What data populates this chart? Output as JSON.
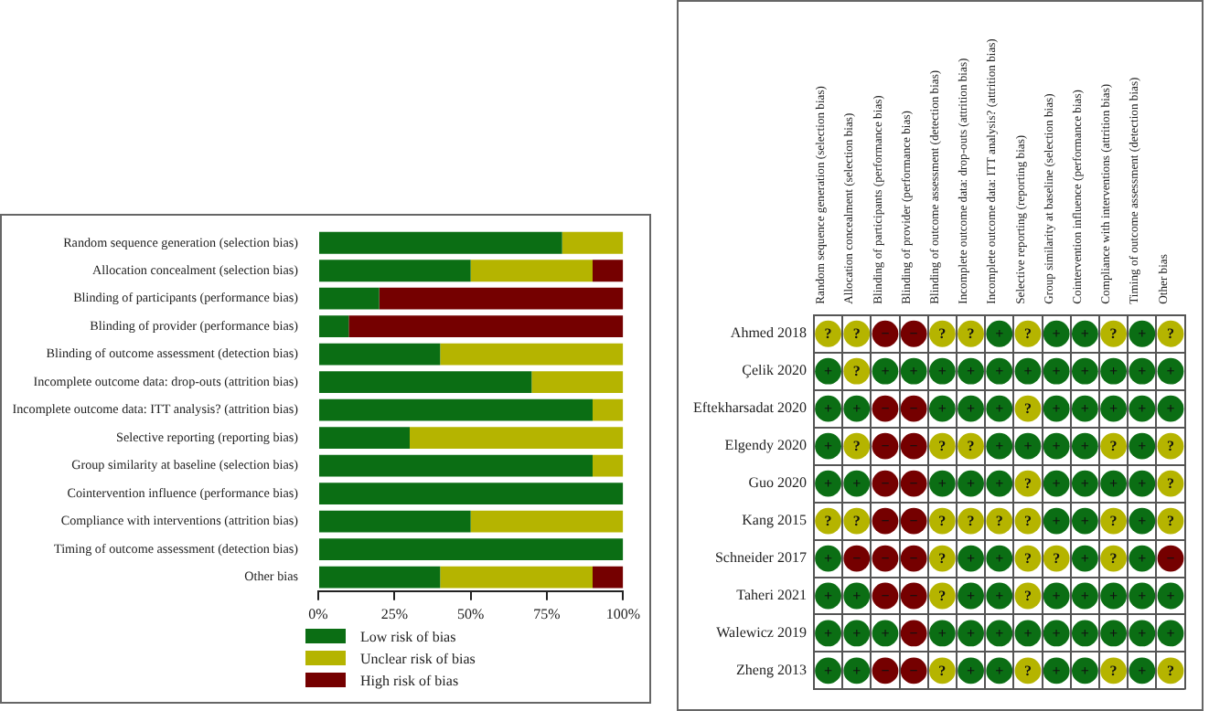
{
  "chart_data": [
    {
      "type": "bar",
      "orientation": "horizontal",
      "stacked": true,
      "legend": "bottom",
      "categories": [
        "Random sequence generation (selection bias)",
        "Allocation concealment (selection bias)",
        "Blinding of participants (performance bias)",
        "Blinding of provider (performance bias)",
        "Blinding of outcome assessment (detection bias)",
        "Incomplete outcome data: drop-outs (attrition bias)",
        "Incomplete outcome data: ITT analysis? (attrition bias)",
        "Selective reporting (reporting bias)",
        "Group similarity at baseline (selection bias)",
        "Cointervention influence (performance bias)",
        "Compliance with interventions (attrition bias)",
        "Timing of outcome assessment (detection bias)",
        "Other bias"
      ],
      "series": [
        {
          "name": "Low risk of bias",
          "color": "#0b6e14",
          "values": [
            80,
            50,
            20,
            10,
            40,
            70,
            90,
            30,
            90,
            100,
            50,
            100,
            40
          ]
        },
        {
          "name": "Unclear risk of bias",
          "color": "#b5b400",
          "values": [
            20,
            40,
            0,
            0,
            60,
            30,
            10,
            70,
            10,
            0,
            50,
            0,
            50
          ]
        },
        {
          "name": "High risk of bias",
          "color": "#750000",
          "values": [
            0,
            10,
            80,
            90,
            0,
            0,
            0,
            0,
            0,
            0,
            0,
            0,
            10
          ]
        }
      ],
      "xlim": [
        0,
        100
      ],
      "xticks": [
        {
          "value": 0,
          "label": "0%"
        },
        {
          "value": 25,
          "label": "25%"
        },
        {
          "value": 50,
          "label": "50%"
        },
        {
          "value": 75,
          "label": "75%"
        },
        {
          "value": 100,
          "label": "100%"
        }
      ]
    },
    {
      "type": "heatmap",
      "grid": true,
      "categories": [
        "Random sequence generation (selection bias)",
        "Allocation concealment (selection bias)",
        "Blinding of participants (performance bias)",
        "Blinding of provider (performance bias)",
        "Blinding of outcome assessment (detection bias)",
        "Incomplete outcome data: drop-outs (attrition bias)",
        "Incomplete outcome data: ITT analysis? (attrition bias)",
        "Selective reporting (reporting bias)",
        "Group similarity at baseline (selection bias)",
        "Cointervention influence (performance bias)",
        "Compliance with interventions (attrition bias)",
        "Timing of outcome assessment (detection bias)",
        "Other bias"
      ],
      "y_categories": [
        "Ahmed 2018",
        "Çelik 2020",
        "Eftekharsadat 2020",
        "Elgendy 2020",
        "Guo 2020",
        "Kang 2015",
        "Schneider 2017",
        "Taheri 2021",
        "Walewicz 2019",
        "Zheng 2013"
      ],
      "cells": [
        [
          "?",
          "?",
          "−",
          "−",
          "?",
          "?",
          "+",
          "?",
          "+",
          "+",
          "?",
          "+",
          "?"
        ],
        [
          "+",
          "?",
          "+",
          "+",
          "+",
          "+",
          "+",
          "+",
          "+",
          "+",
          "+",
          "+",
          "+"
        ],
        [
          "+",
          "+",
          "−",
          "−",
          "+",
          "+",
          "+",
          "?",
          "+",
          "+",
          "+",
          "+",
          "+"
        ],
        [
          "+",
          "?",
          "−",
          "−",
          "?",
          "?",
          "+",
          "+",
          "+",
          "+",
          "?",
          "+",
          "?"
        ],
        [
          "+",
          "+",
          "−",
          "−",
          "+",
          "+",
          "+",
          "?",
          "+",
          "+",
          "+",
          "+",
          "?"
        ],
        [
          "?",
          "?",
          "−",
          "−",
          "?",
          "?",
          "?",
          "?",
          "+",
          "+",
          "?",
          "+",
          "?"
        ],
        [
          "+",
          "−",
          "−",
          "−",
          "?",
          "+",
          "+",
          "?",
          "?",
          "+",
          "?",
          "+",
          "−"
        ],
        [
          "+",
          "+",
          "−",
          "−",
          "?",
          "+",
          "+",
          "?",
          "+",
          "+",
          "+",
          "+",
          "+"
        ],
        [
          "+",
          "+",
          "+",
          "−",
          "+",
          "+",
          "+",
          "+",
          "+",
          "+",
          "+",
          "+",
          "+"
        ],
        [
          "+",
          "+",
          "−",
          "−",
          "?",
          "+",
          "+",
          "?",
          "+",
          "+",
          "?",
          "+",
          "?"
        ]
      ],
      "colors": [
        [
          "#b5b400",
          "#b5b400",
          "#750000",
          "#750000",
          "#b5b400",
          "#b5b400",
          "#0b6e14",
          "#b5b400",
          "#0b6e14",
          "#0b6e14",
          "#b5b400",
          "#0b6e14",
          "#b5b400"
        ],
        [
          "#0b6e14",
          "#b5b400",
          "#0b6e14",
          "#0b6e14",
          "#0b6e14",
          "#0b6e14",
          "#0b6e14",
          "#0b6e14",
          "#0b6e14",
          "#0b6e14",
          "#0b6e14",
          "#0b6e14",
          "#0b6e14"
        ],
        [
          "#0b6e14",
          "#0b6e14",
          "#750000",
          "#750000",
          "#0b6e14",
          "#0b6e14",
          "#0b6e14",
          "#b5b400",
          "#0b6e14",
          "#0b6e14",
          "#0b6e14",
          "#0b6e14",
          "#0b6e14"
        ],
        [
          "#0b6e14",
          "#b5b400",
          "#750000",
          "#750000",
          "#b5b400",
          "#b5b400",
          "#0b6e14",
          "#0b6e14",
          "#0b6e14",
          "#0b6e14",
          "#b5b400",
          "#0b6e14",
          "#b5b400"
        ],
        [
          "#0b6e14",
          "#0b6e14",
          "#750000",
          "#750000",
          "#0b6e14",
          "#0b6e14",
          "#0b6e14",
          "#b5b400",
          "#0b6e14",
          "#0b6e14",
          "#0b6e14",
          "#0b6e14",
          "#b5b400"
        ],
        [
          "#b5b400",
          "#b5b400",
          "#750000",
          "#750000",
          "#b5b400",
          "#b5b400",
          "#b5b400",
          "#b5b400",
          "#0b6e14",
          "#0b6e14",
          "#b5b400",
          "#0b6e14",
          "#b5b400"
        ],
        [
          "#0b6e14",
          "#750000",
          "#750000",
          "#750000",
          "#b5b400",
          "#0b6e14",
          "#0b6e14",
          "#b5b400",
          "#b5b400",
          "#0b6e14",
          "#b5b400",
          "#0b6e14",
          "#750000"
        ],
        [
          "#0b6e14",
          "#0b6e14",
          "#750000",
          "#750000",
          "#b5b400",
          "#0b6e14",
          "#0b6e14",
          "#b5b400",
          "#0b6e14",
          "#0b6e14",
          "#0b6e14",
          "#0b6e14",
          "#0b6e14"
        ],
        [
          "#0b6e14",
          "#0b6e14",
          "#0b6e14",
          "#750000",
          "#0b6e14",
          "#0b6e14",
          "#0b6e14",
          "#0b6e14",
          "#0b6e14",
          "#0b6e14",
          "#0b6e14",
          "#0b6e14",
          "#0b6e14"
        ],
        [
          "#0b6e14",
          "#0b6e14",
          "#750000",
          "#750000",
          "#b5b400",
          "#0b6e14",
          "#0b6e14",
          "#b5b400",
          "#0b6e14",
          "#0b6e14",
          "#b5b400",
          "#0b6e14",
          "#b5b400"
        ]
      ]
    }
  ]
}
